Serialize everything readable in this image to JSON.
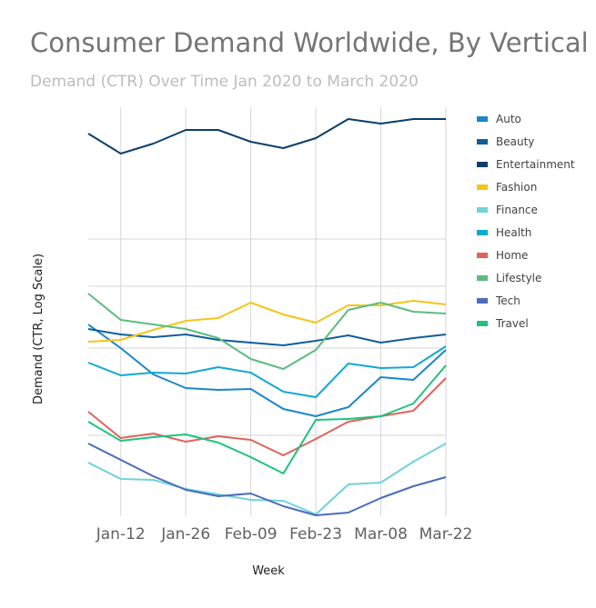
{
  "chart_data": {
    "type": "line",
    "title": "Consumer Demand Worldwide, By Vertical",
    "subtitle": "Demand (CTR) Over Time Jan 2020 to March 2020",
    "xlabel": "Week",
    "ylabel": "Demand (CTR, Log Scale)",
    "x_tick_labels": [
      "Jan-12",
      "Jan-26",
      "Feb-09",
      "Feb-23",
      "Mar-08",
      "Mar-22"
    ],
    "x": [
      "Jan-05",
      "Jan-12",
      "Jan-19",
      "Jan-26",
      "Feb-02",
      "Feb-09",
      "Feb-16",
      "Feb-23",
      "Mar-01",
      "Mar-08",
      "Mar-15",
      "Mar-22"
    ],
    "y_scale": "log",
    "y_tick_labels_shown": false,
    "grid": true,
    "legend_position": "right",
    "series": [
      {
        "name": "Auto",
        "color": "#1a87c9",
        "values": [
          357,
          383,
          412,
          427,
          429,
          428,
          450,
          458,
          448,
          415,
          418,
          385
        ]
      },
      {
        "name": "Beauty",
        "color": "#0f5e9c",
        "values": [
          362,
          368,
          371,
          368,
          374,
          377,
          380,
          375,
          369,
          377,
          372,
          368
        ]
      },
      {
        "name": "Entertainment",
        "color": "#0b3f6a",
        "values": [
          147,
          169,
          158,
          143,
          143,
          156,
          163,
          152,
          131,
          136,
          131,
          131
        ]
      },
      {
        "name": "Fashion",
        "color": "#f4c518",
        "values": [
          376,
          374,
          363,
          353,
          350,
          333,
          346,
          355,
          336,
          336,
          331,
          335
        ]
      },
      {
        "name": "Finance",
        "color": "#6fd3d9",
        "values": [
          509,
          527,
          528,
          538,
          544,
          550,
          551,
          566,
          533,
          531,
          508,
          488
        ]
      },
      {
        "name": "Health",
        "color": "#10a9d4",
        "values": [
          399,
          413,
          410,
          411,
          404,
          410,
          431,
          437,
          400,
          405,
          404,
          381
        ]
      },
      {
        "name": "Home",
        "color": "#e0645c",
        "values": [
          453,
          482,
          477,
          486,
          480,
          484,
          501,
          483,
          464,
          458,
          452,
          416
        ]
      },
      {
        "name": "Lifestyle",
        "color": "#5bbd7f",
        "values": [
          323,
          352,
          357,
          362,
          372,
          395,
          406,
          385,
          341,
          333,
          343,
          345
        ]
      },
      {
        "name": "Tech",
        "color": "#4a6cbf",
        "values": [
          488,
          506,
          524,
          539,
          546,
          543,
          557,
          567,
          564,
          548,
          535,
          525
        ]
      },
      {
        "name": "Travel",
        "color": "#1ec37e",
        "values": [
          464,
          485,
          481,
          478,
          487,
          503,
          521,
          462,
          461,
          458,
          444,
          402
        ]
      }
    ]
  }
}
